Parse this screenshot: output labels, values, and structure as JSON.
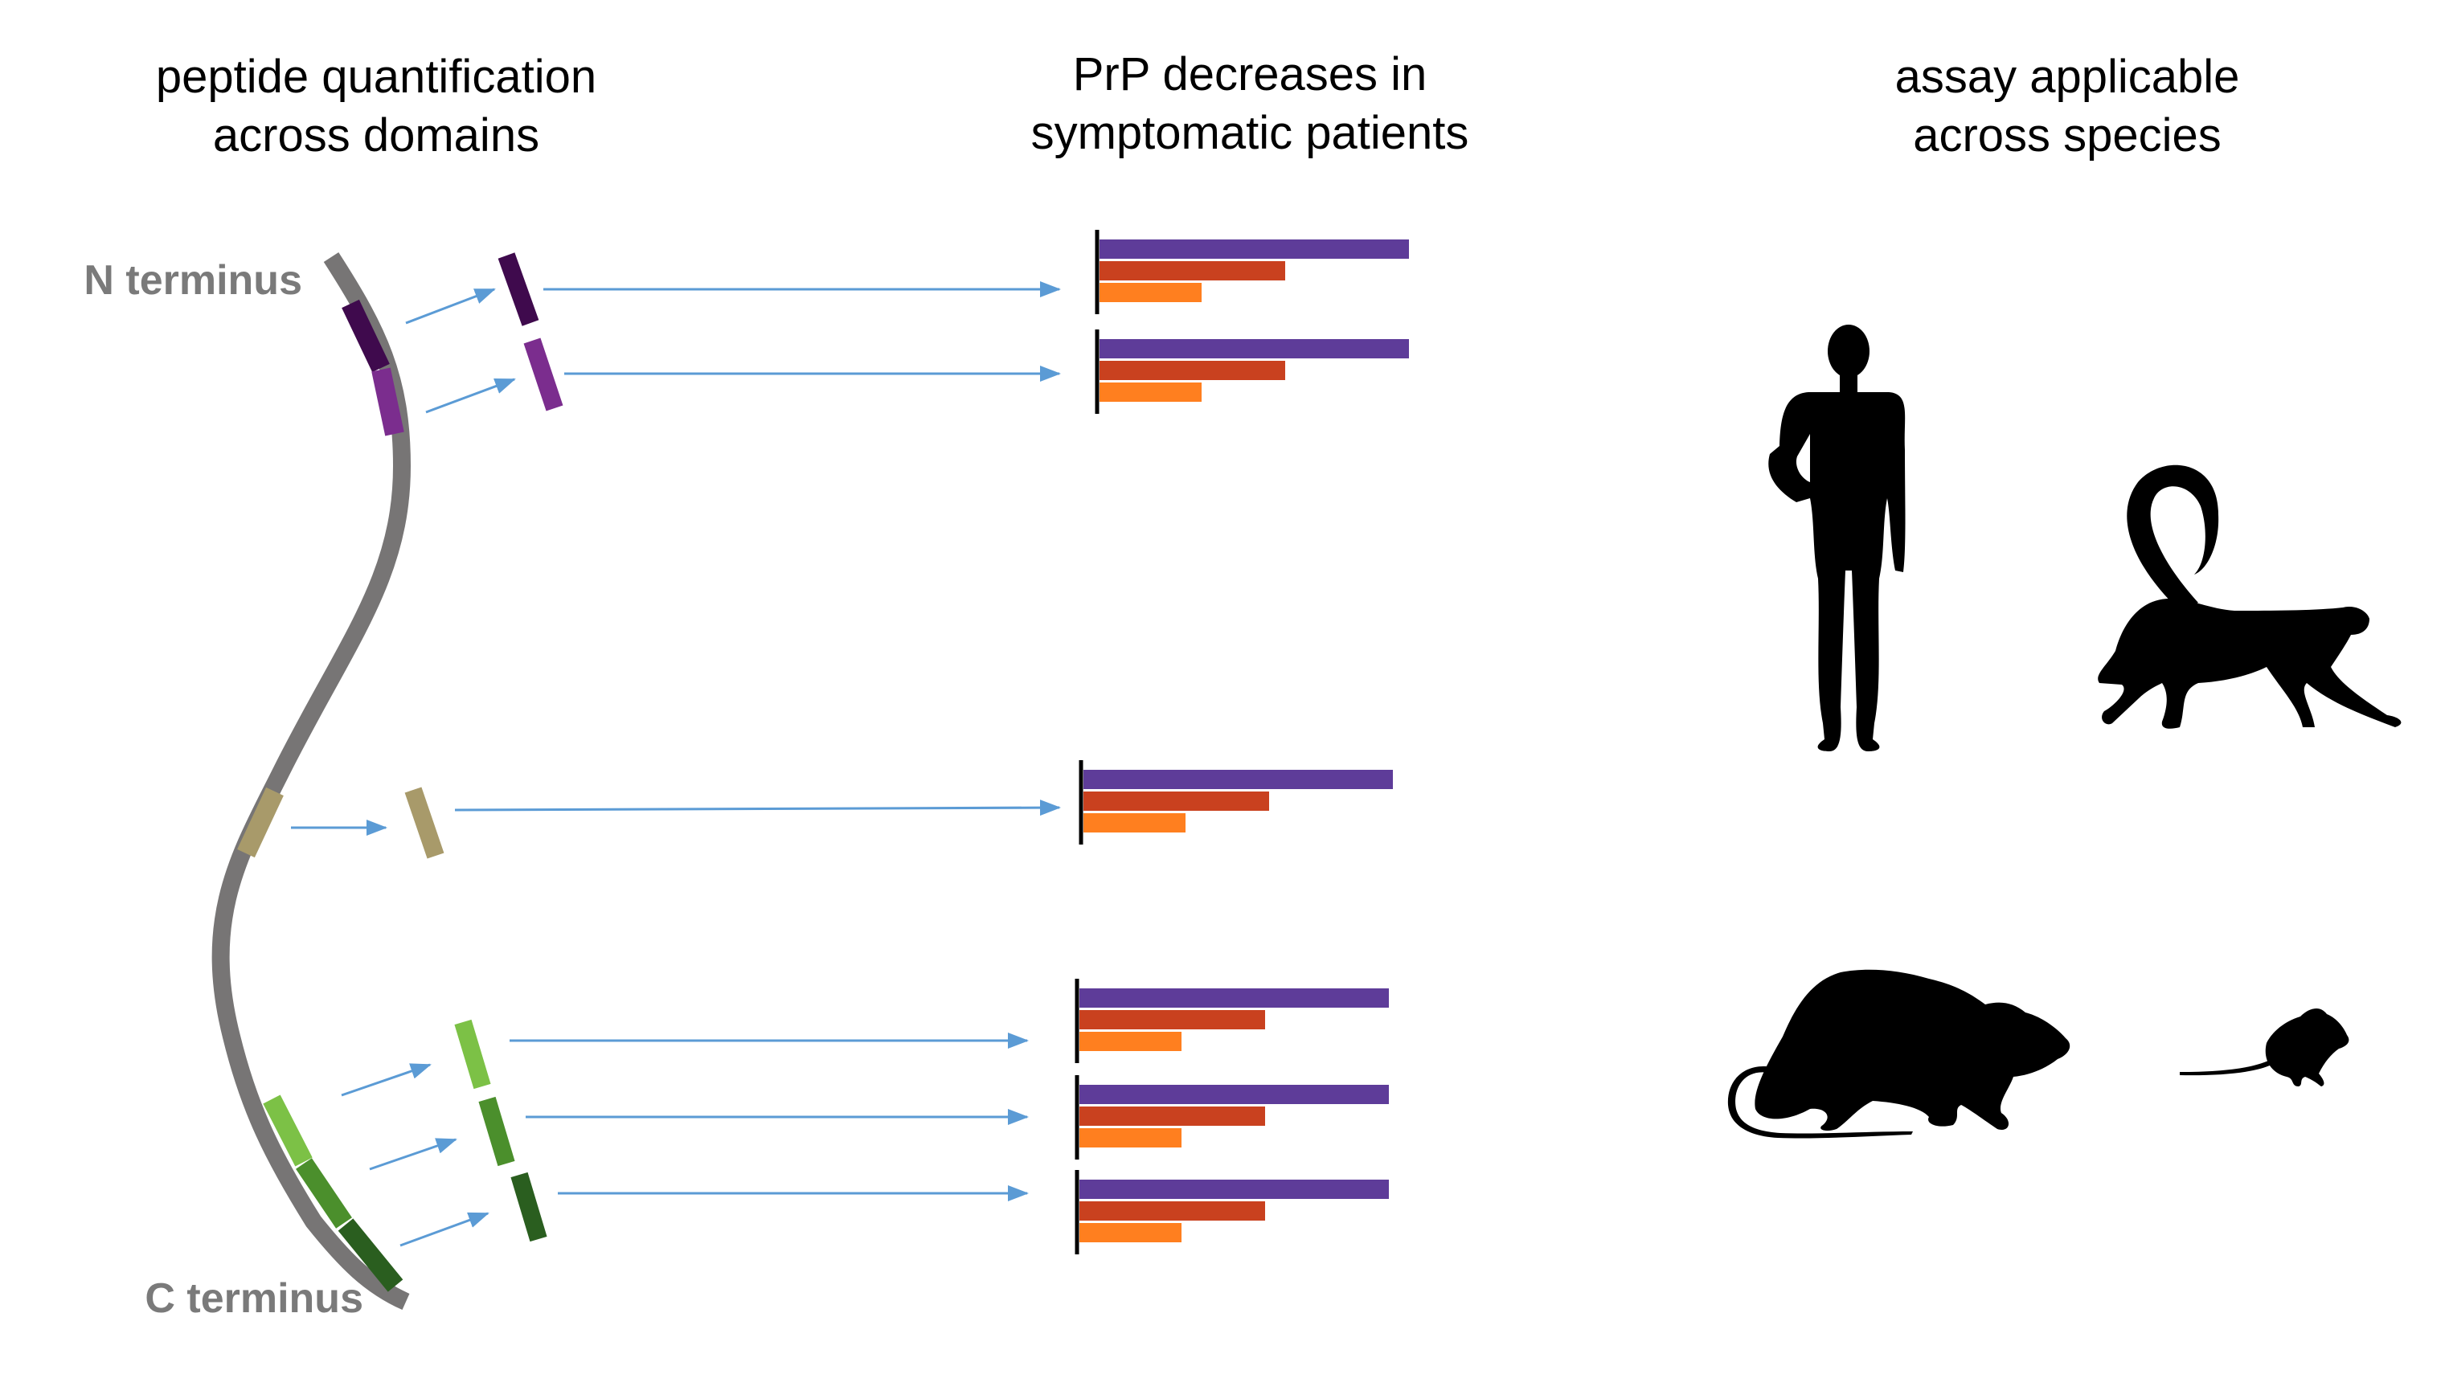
{
  "titles": {
    "left": [
      "peptide quantification",
      "across domains"
    ],
    "middle": [
      "PrP decreases in",
      "symptomatic patients"
    ],
    "right": [
      "assay applicable",
      "across species"
    ]
  },
  "protein_labels": {
    "n_terminus": "N terminus",
    "c_terminus": "C terminus"
  },
  "colors": {
    "backbone": "#777575",
    "arrow": "#5b9bd5",
    "bar_series": [
      "#5e3c99",
      "#c9411f",
      "#ff7f1f"
    ],
    "peptides": [
      "#3f0a4d",
      "#7b2d8e",
      "#a89a6a",
      "#7cc146",
      "#4b8f2c",
      "#2a5e1f"
    ],
    "silhouette": "#000000"
  },
  "peptides": [
    {
      "name": "peptide-1",
      "color": "#3f0a4d",
      "bars": [
        1.0,
        0.6,
        0.33
      ]
    },
    {
      "name": "peptide-2",
      "color": "#7b2d8e",
      "bars": [
        1.0,
        0.6,
        0.33
      ]
    },
    {
      "name": "peptide-3",
      "color": "#a89a6a",
      "bars": [
        1.0,
        0.6,
        0.33
      ]
    },
    {
      "name": "peptide-4",
      "color": "#7cc146",
      "bars": [
        1.0,
        0.6,
        0.33
      ]
    },
    {
      "name": "peptide-5",
      "color": "#4b8f2c",
      "bars": [
        1.0,
        0.6,
        0.33
      ]
    },
    {
      "name": "peptide-6",
      "color": "#2a5e1f",
      "bars": [
        1.0,
        0.6,
        0.33
      ]
    }
  ],
  "species_icons": [
    "human-icon",
    "monkey-icon",
    "rat-icon",
    "mouse-icon"
  ]
}
